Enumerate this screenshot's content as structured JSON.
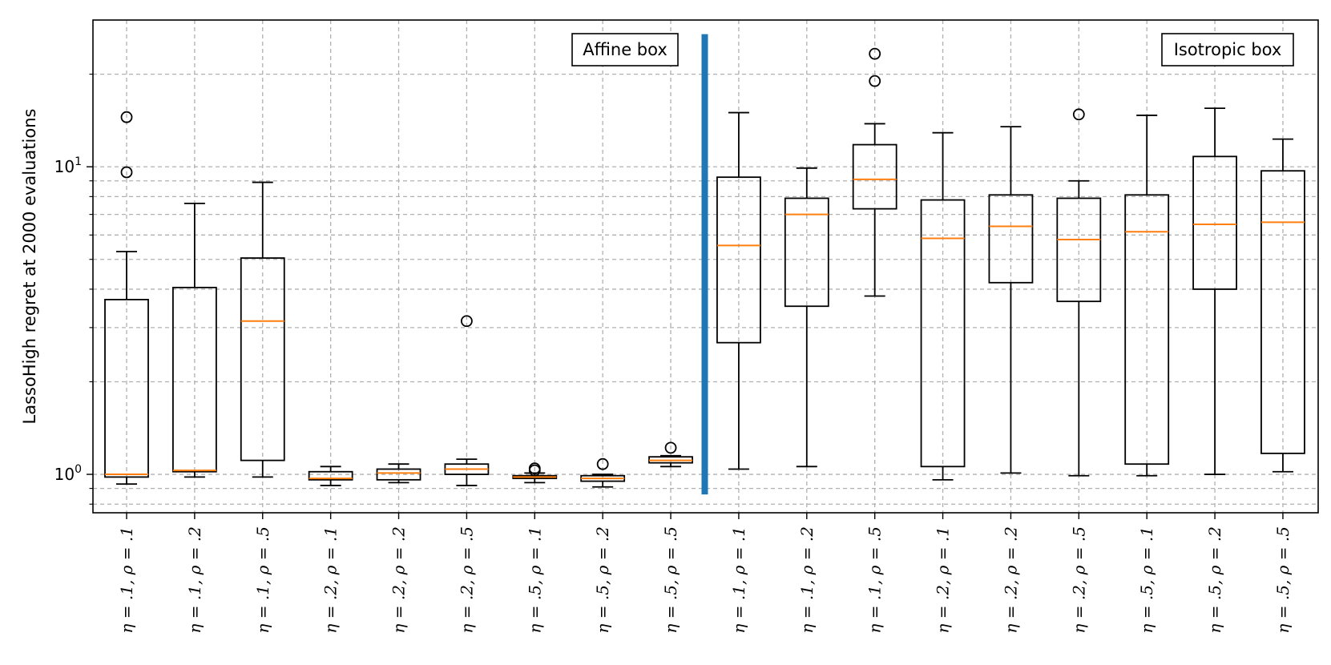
{
  "chart_data": {
    "type": "box",
    "ylabel": "LassoHigh regret at 2000 evaluations",
    "xlabel": "",
    "yscale": "log",
    "ylim": [
      0.75,
      30
    ],
    "y_major_ticks": [
      {
        "value": 1,
        "base": "10",
        "exp": "0"
      },
      {
        "value": 10,
        "base": "10",
        "exp": "1"
      }
    ],
    "y_minor_ticks": [
      0.8,
      0.9,
      2,
      3,
      4,
      5,
      6,
      7,
      8,
      9,
      20
    ],
    "grid": true,
    "divider_after_index": 8,
    "divider_color": "#1f77b4",
    "box_color": "#000000",
    "median_color": "#ff7f0e",
    "annotations": [
      {
        "text": "Affine box",
        "group": "left"
      },
      {
        "text": "Isotropic box",
        "group": "right"
      }
    ],
    "categories": [
      "η = .1, ρ = .1",
      "η = .1, ρ = .2",
      "η = .1, ρ = .5",
      "η = .2, ρ = .1",
      "η = .2, ρ = .2",
      "η = .2, ρ = .5",
      "η = .5, ρ = .1",
      "η = .5, ρ = .2",
      "η = .5, ρ = .5",
      "η = .1, ρ = .1",
      "η = .1, ρ = .2",
      "η = .1, ρ = .5",
      "η = .2, ρ = .1",
      "η = .2, ρ = .2",
      "η = .2, ρ = .5",
      "η = .5, ρ = .1",
      "η = .5, ρ = .2",
      "η = .5, ρ = .5"
    ],
    "boxes": [
      {
        "whislo": 0.93,
        "q1": 0.98,
        "med": 1.0,
        "q3": 3.7,
        "whishi": 5.3,
        "fliers": [
          9.6,
          14.5
        ]
      },
      {
        "whislo": 0.98,
        "q1": 1.02,
        "med": 1.03,
        "q3": 4.05,
        "whishi": 7.6,
        "fliers": []
      },
      {
        "whislo": 0.98,
        "q1": 1.11,
        "med": 3.15,
        "q3": 5.05,
        "whishi": 8.9,
        "fliers": []
      },
      {
        "whislo": 0.92,
        "q1": 0.96,
        "med": 0.97,
        "q3": 1.02,
        "whishi": 1.06,
        "fliers": []
      },
      {
        "whislo": 0.94,
        "q1": 0.96,
        "med": 1.01,
        "q3": 1.04,
        "whishi": 1.08,
        "fliers": []
      },
      {
        "whislo": 0.92,
        "q1": 1.0,
        "med": 1.04,
        "q3": 1.08,
        "whishi": 1.12,
        "fliers": [
          3.15
        ]
      },
      {
        "whislo": 0.94,
        "q1": 0.97,
        "med": 0.98,
        "q3": 0.99,
        "whishi": 1.01,
        "fliers": [
          1.03,
          1.045
        ]
      },
      {
        "whislo": 0.91,
        "q1": 0.95,
        "med": 0.97,
        "q3": 0.99,
        "whishi": 1.0,
        "fliers": [
          1.08
        ]
      },
      {
        "whislo": 1.06,
        "q1": 1.09,
        "med": 1.11,
        "q3": 1.14,
        "whishi": 1.15,
        "fliers": [
          1.22
        ]
      },
      {
        "whislo": 1.04,
        "q1": 2.68,
        "med": 5.55,
        "q3": 9.25,
        "whishi": 15.0,
        "fliers": []
      },
      {
        "whislo": 1.06,
        "q1": 3.52,
        "med": 7.0,
        "q3": 7.9,
        "whishi": 9.9,
        "fliers": []
      },
      {
        "whislo": 3.8,
        "q1": 7.3,
        "med": 9.1,
        "q3": 11.8,
        "whishi": 13.8,
        "fliers": [
          19.0,
          23.3
        ]
      },
      {
        "whislo": 0.96,
        "q1": 1.06,
        "med": 5.85,
        "q3": 7.8,
        "whishi": 12.9,
        "fliers": []
      },
      {
        "whislo": 1.01,
        "q1": 4.2,
        "med": 6.4,
        "q3": 8.1,
        "whishi": 13.5,
        "fliers": []
      },
      {
        "whislo": 0.99,
        "q1": 3.65,
        "med": 5.8,
        "q3": 7.9,
        "whishi": 9.0,
        "fliers": [
          14.8
        ]
      },
      {
        "whislo": 0.99,
        "q1": 1.08,
        "med": 6.15,
        "q3": 8.1,
        "whishi": 14.7,
        "fliers": []
      },
      {
        "whislo": 1.0,
        "q1": 4.0,
        "med": 6.5,
        "q3": 10.8,
        "whishi": 15.5,
        "fliers": []
      },
      {
        "whislo": 1.02,
        "q1": 1.17,
        "med": 6.6,
        "q3": 9.7,
        "whishi": 12.3,
        "fliers": []
      }
    ]
  }
}
